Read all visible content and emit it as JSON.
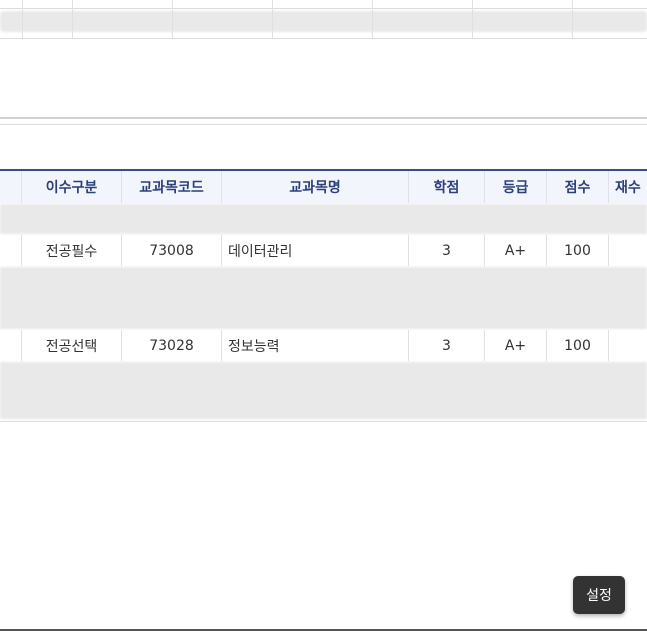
{
  "table": {
    "headers": [
      "",
      "이수구분",
      "교과목코드",
      "교과목명",
      "학점",
      "등급",
      "점수",
      "재수"
    ],
    "rows": [
      [
        "",
        "전공필수",
        "73008",
        "데이터관리",
        "3",
        "A+",
        "100",
        ""
      ],
      [
        "",
        "전공선택",
        "73028",
        "정보능력",
        "3",
        "A+",
        "100",
        ""
      ]
    ]
  },
  "settings_button": "설정",
  "colors": {
    "header_text": "#2b3f7a",
    "header_border": "#3a4a8a",
    "button_bg": "#333333"
  }
}
